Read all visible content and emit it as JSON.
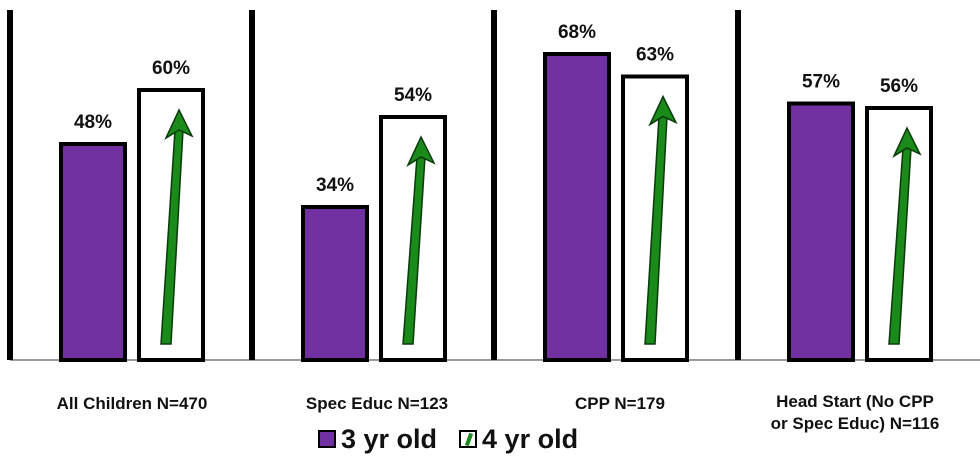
{
  "chart_data": {
    "type": "bar",
    "categories": [
      "All Children  N=470",
      "Spec Educ N=123",
      "CPP N=179",
      "Head Start  (No CPP\nor Spec Educ) N=116"
    ],
    "series": [
      {
        "name": "3 yr old",
        "values": [
          48,
          34,
          68,
          57
        ]
      },
      {
        "name": "4 yr old",
        "values": [
          60,
          54,
          63,
          56
        ]
      }
    ],
    "value_suffix": "%",
    "ylim": [
      0,
      72
    ],
    "grid": false,
    "legend_position": "bottom",
    "colors": {
      "three_yr": "#7030a0",
      "four_yr_fill": "#ffffff",
      "arrow": "#1a8a1a",
      "border": "#000000"
    }
  },
  "legend": {
    "items": [
      {
        "label": "3 yr old",
        "swatch": "purple-square"
      },
      {
        "label": "4 yr old",
        "swatch": "green-arrow-box"
      }
    ]
  }
}
